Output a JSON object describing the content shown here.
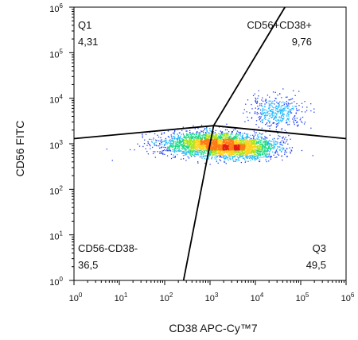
{
  "chart_data": {
    "type": "scatter",
    "subtype": "flow-cytometry-density-dot-plot",
    "xlabel": "CD38 APC-Cy™7",
    "ylabel": "CD56 FITC",
    "x_scale": "log",
    "y_scale": "log",
    "xlim": [
      1,
      1000000
    ],
    "ylim": [
      1,
      1000000
    ],
    "x_ticks": [
      {
        "base": "10",
        "exp": "0",
        "value": 1
      },
      {
        "base": "10",
        "exp": "1",
        "value": 10
      },
      {
        "base": "10",
        "exp": "2",
        "value": 100
      },
      {
        "base": "10",
        "exp": "3",
        "value": 1000
      },
      {
        "base": "10",
        "exp": "4",
        "value": 10000
      },
      {
        "base": "10",
        "exp": "5",
        "value": 100000
      },
      {
        "base": "10",
        "exp": "6",
        "value": 1000000
      }
    ],
    "y_ticks": [
      {
        "base": "10",
        "exp": "0",
        "value": 1
      },
      {
        "base": "10",
        "exp": "1",
        "value": 10
      },
      {
        "base": "10",
        "exp": "2",
        "value": 100
      },
      {
        "base": "10",
        "exp": "3",
        "value": 1000
      },
      {
        "base": "10",
        "exp": "4",
        "value": 10000
      },
      {
        "base": "10",
        "exp": "5",
        "value": 100000
      },
      {
        "base": "10",
        "exp": "6",
        "value": 1000000
      }
    ],
    "grid": false,
    "density_colormap": [
      "#1f3ff5",
      "#1fb8ff",
      "#19d985",
      "#a8e619",
      "#ffd21a",
      "#ff7a12",
      "#e61a14"
    ],
    "populations": [
      {
        "center": [
          1000,
          1000
        ],
        "spread": [
          0.55,
          0.13
        ],
        "weight": 0.55
      },
      {
        "center": [
          5000,
          800
        ],
        "spread": [
          0.42,
          0.12
        ],
        "weight": 0.35
      },
      {
        "center": [
          30000,
          5000
        ],
        "spread": [
          0.32,
          0.17
        ],
        "weight": 0.1
      }
    ],
    "gate_lines": [
      {
        "from": [
          1,
          1300
        ],
        "to": [
          1000000,
          1300
        ],
        "bend_at": [
          1200,
          2500
        ]
      },
      {
        "from": [
          260,
          1
        ],
        "to": [
          45000,
          1000000
        ],
        "bend_at": [
          1200,
          2500
        ]
      }
    ],
    "quadrants": [
      {
        "name": "Q1",
        "value": "4,31",
        "position": "top-left"
      },
      {
        "name": "CD56+CD38+",
        "value": "9,76",
        "position": "top-right"
      },
      {
        "name": "CD56-CD38-",
        "value": "36,5",
        "position": "bottom-left"
      },
      {
        "name": "Q3",
        "value": "49,5",
        "position": "bottom-right"
      }
    ]
  }
}
